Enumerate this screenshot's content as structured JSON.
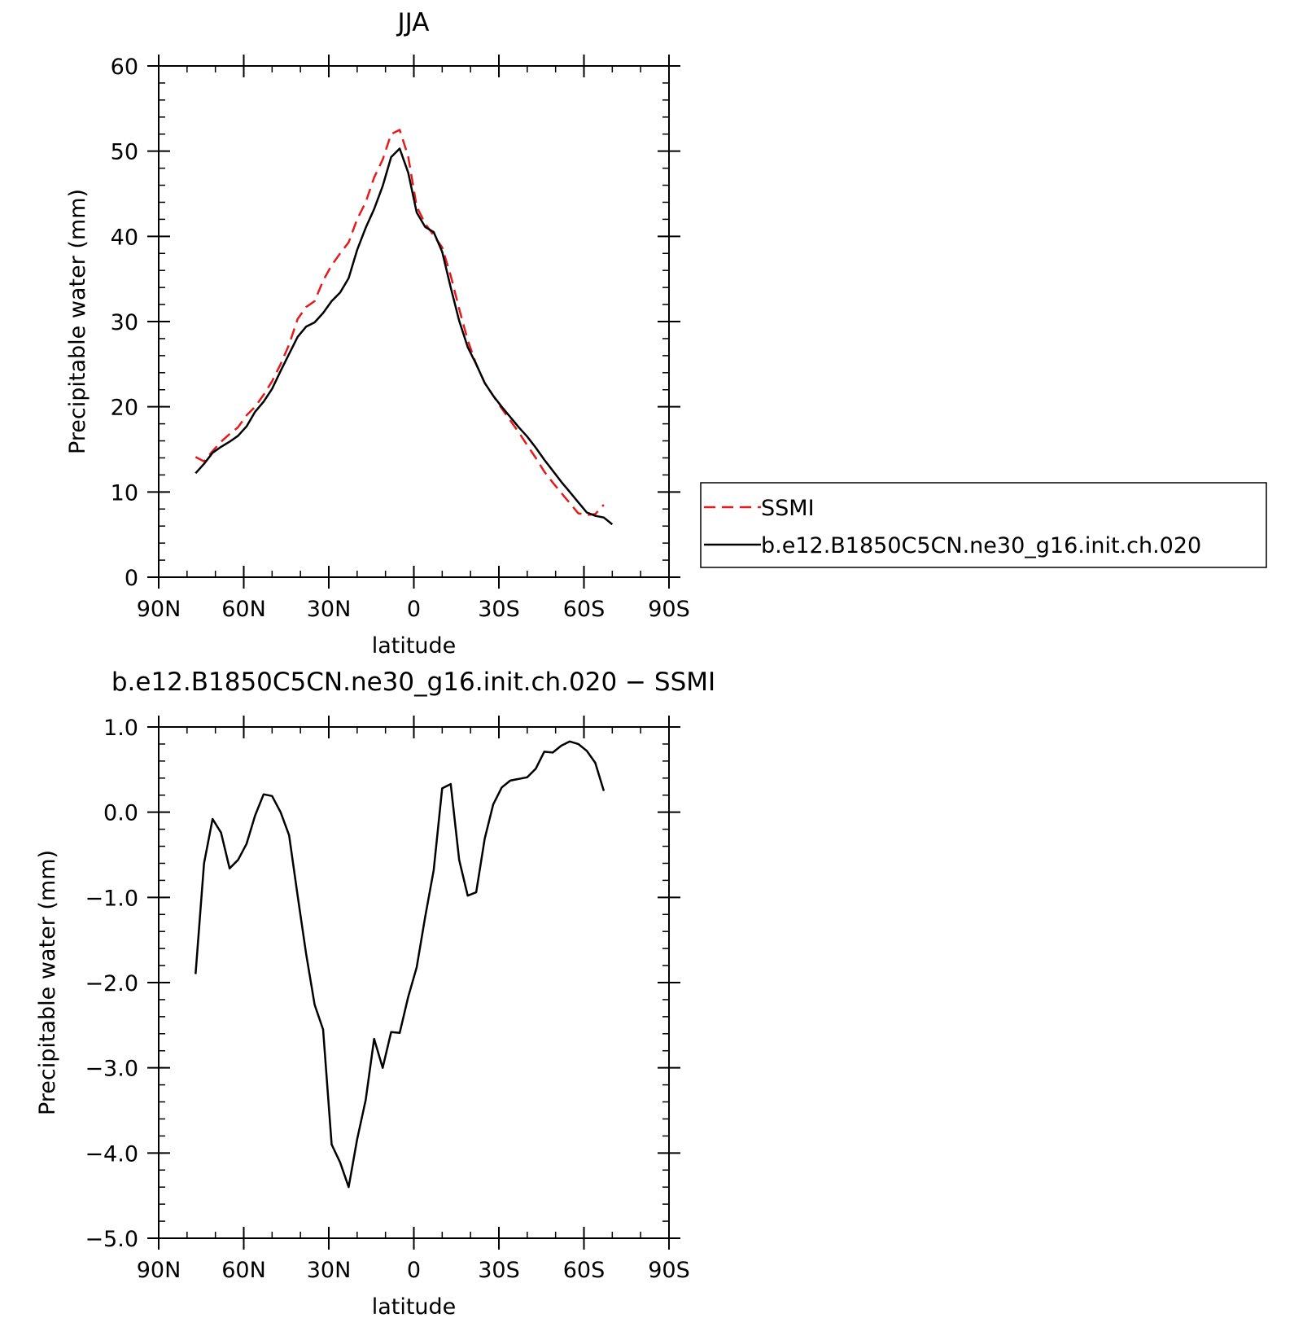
{
  "chart_data": [
    {
      "type": "line",
      "title": "JJA",
      "xlabel": "latitude",
      "ylabel": "Precipitable water (mm)",
      "xlim": [
        90,
        -90
      ],
      "ylim": [
        0,
        60
      ],
      "x_ticks": [
        {
          "value": 90,
          "label": "90N"
        },
        {
          "value": 60,
          "label": "60N"
        },
        {
          "value": 30,
          "label": "30N"
        },
        {
          "value": 0,
          "label": "0"
        },
        {
          "value": -30,
          "label": "30S"
        },
        {
          "value": -60,
          "label": "60S"
        },
        {
          "value": -90,
          "label": "90S"
        }
      ],
      "y_ticks": [
        {
          "value": 0,
          "label": "0"
        },
        {
          "value": 10,
          "label": "10"
        },
        {
          "value": 20,
          "label": "20"
        },
        {
          "value": 30,
          "label": "30"
        },
        {
          "value": 40,
          "label": "40"
        },
        {
          "value": 50,
          "label": "50"
        },
        {
          "value": 60,
          "label": "60"
        }
      ],
      "legend_position": "right",
      "series": [
        {
          "name": "SSMI",
          "color": "#e41a1c",
          "dash": "dashed",
          "x": [
            77,
            74,
            71,
            68,
            65,
            62,
            59,
            56,
            53,
            50,
            47,
            44,
            41,
            38,
            35,
            32,
            29,
            26,
            23,
            20,
            17,
            14,
            11,
            8,
            5,
            2,
            -1,
            -4,
            -7,
            -10,
            -13,
            -16,
            -19,
            -22,
            -25,
            -28,
            -31,
            -34,
            -37,
            -40,
            -43,
            -46,
            -49,
            -52,
            -55,
            -58,
            -61,
            -64,
            -67
          ],
          "y": [
            14.1,
            13.6,
            14.8,
            15.9,
            16.8,
            17.6,
            19.0,
            20.0,
            21.4,
            23.0,
            25.0,
            27.3,
            30.3,
            31.7,
            32.4,
            34.8,
            36.6,
            38.0,
            39.3,
            42.0,
            44.0,
            46.9,
            49.0,
            52.0,
            52.5,
            49.4,
            43.5,
            41.5,
            40.1,
            38.7,
            35.4,
            31.5,
            27.8,
            25.0,
            22.8,
            21.3,
            19.8,
            18.4,
            17.0,
            15.5,
            14.0,
            12.4,
            11.1,
            9.9,
            8.7,
            7.5,
            7.3,
            7.4,
            8.5
          ]
        },
        {
          "name": "b.e12.B1850C5CN.ne30_g16.init.ch.020",
          "color": "#000000",
          "dash": "solid",
          "x": [
            77,
            74,
            71,
            68,
            65,
            62,
            59,
            56,
            53,
            50,
            47,
            44,
            41,
            38,
            35,
            32,
            29,
            26,
            23,
            20,
            17,
            14,
            11,
            8,
            5,
            2,
            -1,
            -4,
            -7,
            -10,
            -13,
            -16,
            -19,
            -22,
            -25,
            -28,
            -31,
            -34,
            -37,
            -40,
            -43,
            -46,
            -49,
            -52,
            -55,
            -58,
            -61,
            -64,
            -67,
            -70
          ],
          "y": [
            12.2,
            13.3,
            14.6,
            15.3,
            15.9,
            16.6,
            17.7,
            19.4,
            20.6,
            22.1,
            24.2,
            26.2,
            28.2,
            29.4,
            29.9,
            31.0,
            32.4,
            33.4,
            35.1,
            38.4,
            41.0,
            43.2,
            45.9,
            49.3,
            50.3,
            47.5,
            42.8,
            41.1,
            40.5,
            38.2,
            34.0,
            30.1,
            27.0,
            25.0,
            22.8,
            21.3,
            20.0,
            18.8,
            17.6,
            16.5,
            15.2,
            13.8,
            12.5,
            11.2,
            10.0,
            8.8,
            7.6,
            7.2,
            7.0,
            6.2
          ]
        }
      ]
    },
    {
      "type": "line",
      "title": "b.e12.B1850C5CN.ne30_g16.init.ch.020 - SSMI",
      "xlabel": "latitude",
      "ylabel": "Precipitable water (mm)",
      "xlim": [
        90,
        -90
      ],
      "ylim": [
        -5,
        1
      ],
      "x_ticks": [
        {
          "value": 90,
          "label": "90N"
        },
        {
          "value": 60,
          "label": "60N"
        },
        {
          "value": 30,
          "label": "30N"
        },
        {
          "value": 0,
          "label": "0"
        },
        {
          "value": -30,
          "label": "30S"
        },
        {
          "value": -60,
          "label": "60S"
        },
        {
          "value": -90,
          "label": "90S"
        }
      ],
      "y_ticks": [
        {
          "value": 1,
          "label": "1.0"
        },
        {
          "value": 0,
          "label": "0.0"
        },
        {
          "value": -1,
          "label": "-1.0"
        },
        {
          "value": -2,
          "label": "-2.0"
        },
        {
          "value": -3,
          "label": "-3.0"
        },
        {
          "value": -4,
          "label": "-4.0"
        },
        {
          "value": -5,
          "label": "-5.0"
        }
      ],
      "series": [
        {
          "color": "#000000",
          "dash": "solid",
          "x": [
            77,
            74,
            71,
            68,
            65,
            62,
            59,
            56,
            53,
            50,
            47,
            44,
            41,
            38,
            35,
            32,
            29,
            26,
            23,
            20,
            17,
            14,
            11,
            8,
            5,
            2,
            -1,
            -4,
            -7,
            -10,
            -13,
            -16,
            -19,
            -22,
            -25,
            -28,
            -31,
            -34,
            -37,
            -40,
            -43,
            -46,
            -49,
            -52,
            -55,
            -58,
            -61,
            -64,
            -67
          ],
          "y": [
            -1.9,
            -0.6,
            -0.08,
            -0.24,
            -0.66,
            -0.56,
            -0.37,
            -0.04,
            0.21,
            0.19,
            0.0,
            -0.27,
            -0.98,
            -1.66,
            -2.26,
            -2.55,
            -3.9,
            -4.11,
            -4.4,
            -3.84,
            -3.38,
            -2.66,
            -3.0,
            -2.58,
            -2.59,
            -2.17,
            -1.82,
            -1.23,
            -0.68,
            0.28,
            0.33,
            -0.56,
            -0.98,
            -0.94,
            -0.31,
            0.09,
            0.29,
            0.37,
            0.39,
            0.41,
            0.51,
            0.71,
            0.7,
            0.78,
            0.83,
            0.8,
            0.72,
            0.58,
            0.25
          ]
        }
      ]
    }
  ]
}
